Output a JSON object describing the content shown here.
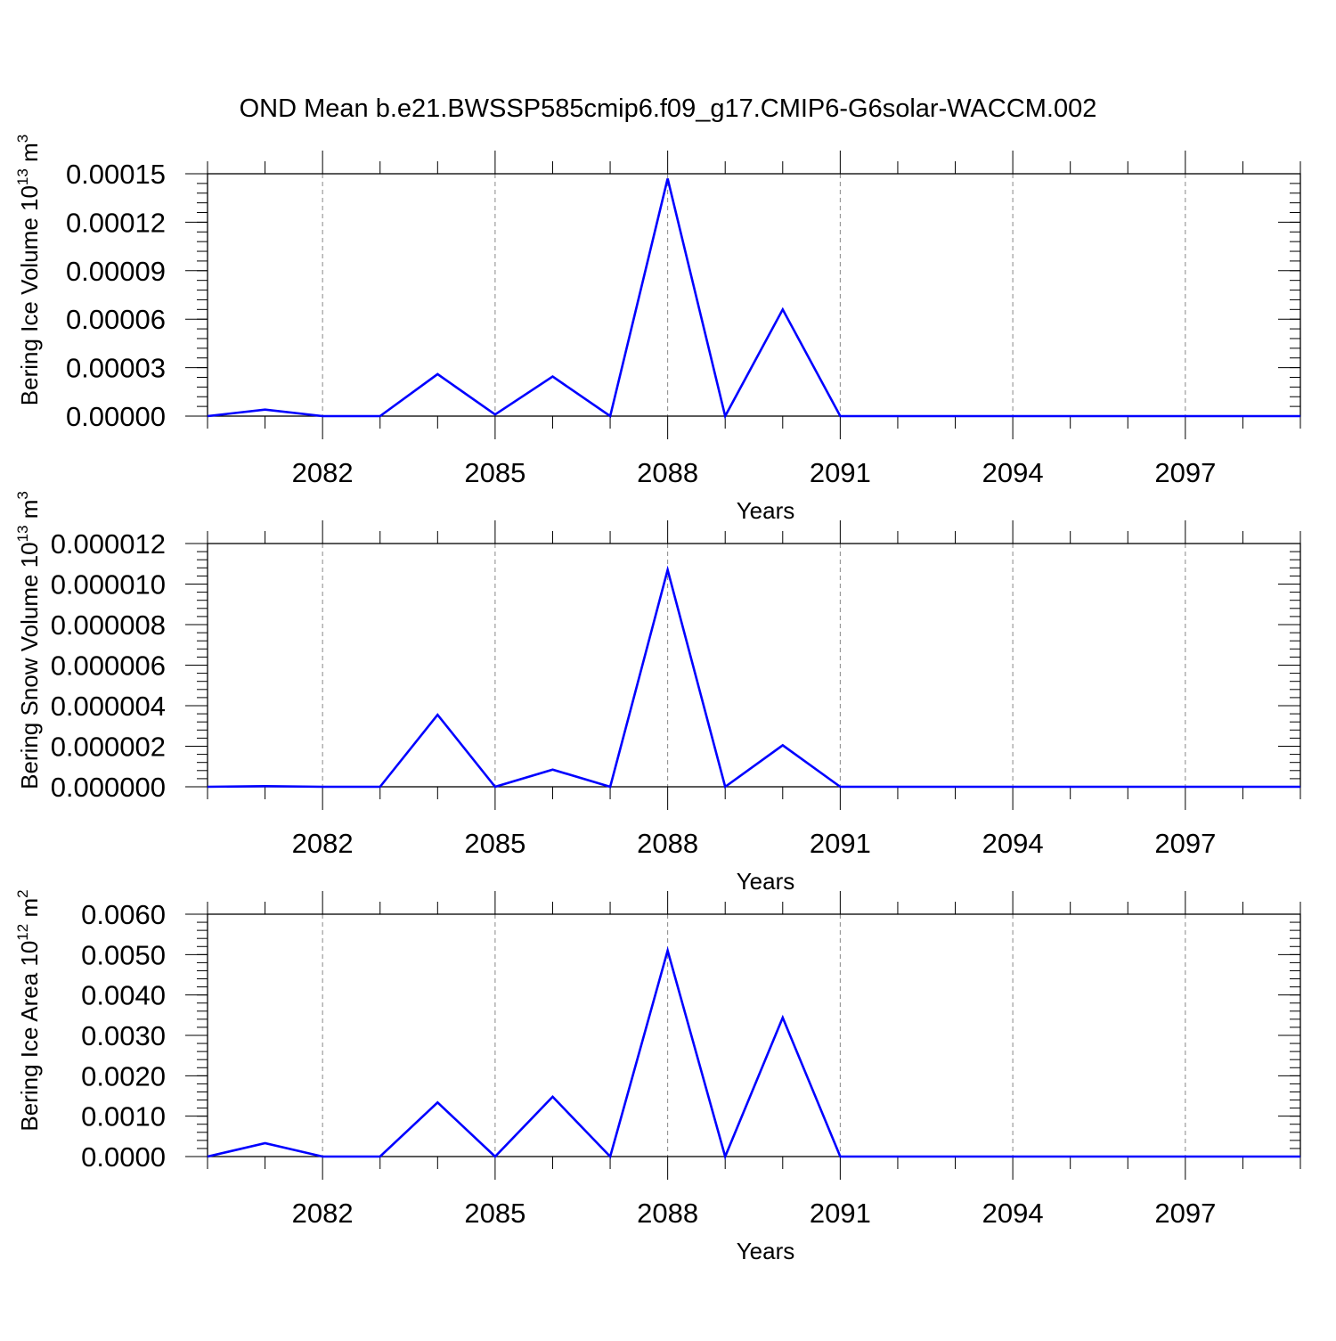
{
  "figure": {
    "title": "OND Mean b.e21.BWSSP585cmip6.f09_g17.CMIP6-G6solar-WACCM.002",
    "line_color": "#0000ff"
  },
  "chart_data": [
    {
      "type": "line",
      "xlabel": "Years",
      "ylabel": "Bering Ice Volume 10",
      "ylabel_exp": "13",
      "ylabel_unit": "m",
      "ylabel_unit_exp": "3",
      "xlim": [
        2080,
        2099
      ],
      "ylim": [
        0,
        0.00015
      ],
      "x_ticks": [
        2082,
        2085,
        2088,
        2091,
        2094,
        2097
      ],
      "y_ticks": [
        0,
        3e-05,
        6e-05,
        9e-05,
        0.00012,
        0.00015
      ],
      "y_tick_labels": [
        "0.00000",
        "0.00003",
        "0.00006",
        "0.00009",
        "0.00012",
        "0.00015"
      ],
      "y_minor_step": 6e-06,
      "grid": "x-major-dashed",
      "series": [
        {
          "x": [
            2080,
            2081,
            2082,
            2083,
            2084,
            2085,
            2086,
            2087,
            2088,
            2089,
            2090,
            2091,
            2092,
            2093,
            2094,
            2095,
            2096,
            2097,
            2098,
            2099
          ],
          "values": [
            0,
            4e-06,
            0,
            0,
            2.6e-05,
            1e-06,
            2.45e-05,
            0,
            0.000147,
            0,
            6.6e-05,
            0,
            0,
            0,
            0,
            0,
            0,
            0,
            0,
            0
          ]
        }
      ]
    },
    {
      "type": "line",
      "xlabel": "Years",
      "ylabel": "Bering Snow Volume 10",
      "ylabel_exp": "13",
      "ylabel_unit": "m",
      "ylabel_unit_exp": "3",
      "xlim": [
        2080,
        2099
      ],
      "ylim": [
        0,
        1.2e-05
      ],
      "x_ticks": [
        2082,
        2085,
        2088,
        2091,
        2094,
        2097
      ],
      "y_ticks": [
        0,
        2e-06,
        4e-06,
        6e-06,
        8e-06,
        1e-05,
        1.2e-05
      ],
      "y_tick_labels": [
        "0.000000",
        "0.000002",
        "0.000004",
        "0.000006",
        "0.000008",
        "0.000010",
        "0.000012"
      ],
      "y_minor_step": 4e-07,
      "grid": "x-major-dashed",
      "series": [
        {
          "x": [
            2080,
            2081,
            2082,
            2083,
            2084,
            2085,
            2086,
            2087,
            2088,
            2089,
            2090,
            2091,
            2092,
            2093,
            2094,
            2095,
            2096,
            2097,
            2098,
            2099
          ],
          "values": [
            0,
            3e-08,
            0,
            0,
            3.55e-06,
            0,
            8.5e-07,
            0,
            1.07e-05,
            0,
            2.05e-06,
            0,
            0,
            0,
            0,
            0,
            0,
            0,
            0,
            0
          ]
        }
      ]
    },
    {
      "type": "line",
      "xlabel": "Years",
      "ylabel": "Bering Ice Area 10",
      "ylabel_exp": "12",
      "ylabel_unit": "m",
      "ylabel_unit_exp": "2",
      "xlim": [
        2080,
        2099
      ],
      "ylim": [
        0,
        0.006
      ],
      "x_ticks": [
        2082,
        2085,
        2088,
        2091,
        2094,
        2097
      ],
      "y_ticks": [
        0,
        0.001,
        0.002,
        0.003,
        0.004,
        0.005,
        0.006
      ],
      "y_tick_labels": [
        "0.0000",
        "0.0010",
        "0.0020",
        "0.0030",
        "0.0040",
        "0.0050",
        "0.0060"
      ],
      "y_minor_step": 0.0002,
      "grid": "x-major-dashed",
      "series": [
        {
          "x": [
            2080,
            2081,
            2082,
            2083,
            2084,
            2085,
            2086,
            2087,
            2088,
            2089,
            2090,
            2091,
            2092,
            2093,
            2094,
            2095,
            2096,
            2097,
            2098,
            2099
          ],
          "values": [
            0,
            0.00033,
            0,
            0,
            0.00134,
            0,
            0.00148,
            0,
            0.0051,
            0,
            0.00344,
            0,
            0,
            0,
            0,
            0,
            0,
            0,
            0,
            0
          ]
        }
      ]
    }
  ]
}
